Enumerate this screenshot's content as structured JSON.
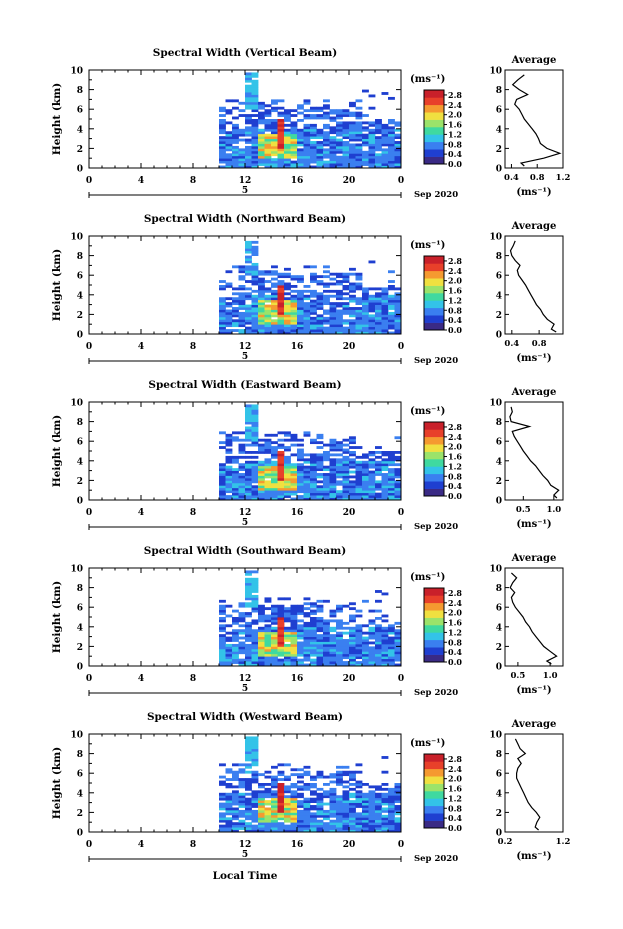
{
  "figure": {
    "x_axis_label": "Local Time",
    "date_label": "Sep 2020",
    "day_label": "5",
    "units_label": "(ms⁻¹)",
    "colorbar_ticks": [
      "2.8",
      "2.4",
      "2.0",
      "1.6",
      "1.2",
      "0.8",
      "0.4",
      "0.0"
    ],
    "colors": [
      "#3a2a85",
      "#1f3fd0",
      "#3a7ff0",
      "#33c3e8",
      "#3fd9a0",
      "#9be36a",
      "#f0e040",
      "#f59a30",
      "#e8402a",
      "#c9202a"
    ]
  },
  "chart_data": [
    {
      "type": "heatmap",
      "title": "Spectral Width (Vertical Beam)",
      "xlabel": "",
      "ylabel": "Height (km)",
      "xlim": [
        0,
        24
      ],
      "ylim": [
        0,
        10
      ],
      "xticks": [
        "0",
        "4",
        "8",
        "12",
        "16",
        "20",
        "0"
      ],
      "yticks": [
        "0",
        "2",
        "4",
        "6",
        "8",
        "10"
      ],
      "zlabel": "(ms⁻¹)",
      "zlim": [
        0,
        3.0
      ],
      "profile": {
        "title": "Average",
        "xlabel": "(ms⁻¹)",
        "xlim": [
          0.3,
          1.2
        ],
        "xticks": [
          "0.4",
          "0.8",
          "1.2"
        ],
        "height": [
          0.2,
          0.5,
          1.0,
          1.5,
          2.0,
          2.5,
          3.0,
          3.5,
          4.0,
          4.5,
          5.0,
          5.5,
          6.0,
          6.5,
          7.0,
          7.5,
          8.0,
          8.5,
          9.0,
          9.5
        ],
        "width": [
          0.6,
          0.55,
          0.9,
          1.15,
          0.95,
          0.85,
          0.82,
          0.78,
          0.72,
          0.66,
          0.6,
          0.56,
          0.52,
          0.45,
          0.48,
          0.65,
          0.52,
          0.42,
          0.5,
          0.6
        ]
      }
    },
    {
      "type": "heatmap",
      "title": "Spectral Width (Northward Beam)",
      "xlabel": "",
      "ylabel": "Height (km)",
      "xlim": [
        0,
        24
      ],
      "ylim": [
        0,
        10
      ],
      "xticks": [
        "0",
        "4",
        "8",
        "12",
        "16",
        "20",
        "0"
      ],
      "yticks": [
        "0",
        "2",
        "4",
        "6",
        "8",
        "10"
      ],
      "zlabel": "(ms⁻¹)",
      "zlim": [
        0,
        3.0
      ],
      "profile": {
        "title": "Average",
        "xlabel": "(ms⁻¹)",
        "xlim": [
          0.3,
          1.15
        ],
        "xticks": [
          "0.4",
          "0.8"
        ],
        "height": [
          0.2,
          0.5,
          1.0,
          1.5,
          2.0,
          2.5,
          3.0,
          3.5,
          4.0,
          4.5,
          5.0,
          5.5,
          6.0,
          6.5,
          7.0,
          7.5,
          8.0,
          8.5,
          9.0,
          9.5
        ],
        "width": [
          1.05,
          0.98,
          1.02,
          0.92,
          0.86,
          0.82,
          0.76,
          0.72,
          0.68,
          0.64,
          0.6,
          0.55,
          0.5,
          0.48,
          0.52,
          0.45,
          0.4,
          0.38,
          0.42,
          0.45
        ]
      }
    },
    {
      "type": "heatmap",
      "title": "Spectral Width (Eastward Beam)",
      "xlabel": "",
      "ylabel": "Height (km)",
      "xlim": [
        0,
        24
      ],
      "ylim": [
        0,
        10
      ],
      "xticks": [
        "0",
        "4",
        "8",
        "12",
        "16",
        "20",
        "0"
      ],
      "yticks": [
        "0",
        "2",
        "4",
        "6",
        "8",
        "10"
      ],
      "zlabel": "(ms⁻¹)",
      "zlim": [
        0,
        3.0
      ],
      "profile": {
        "title": "Average",
        "xlabel": "(ms⁻¹)",
        "xlim": [
          0.2,
          1.15
        ],
        "xticks": [
          "0.5",
          "1.0"
        ],
        "height": [
          0.2,
          0.5,
          1.0,
          1.5,
          2.0,
          2.5,
          3.0,
          3.5,
          4.0,
          4.5,
          5.0,
          5.5,
          6.0,
          6.5,
          7.0,
          7.5,
          8.0,
          8.5,
          9.0,
          9.5
        ],
        "width": [
          1.05,
          1.0,
          1.08,
          0.95,
          0.9,
          0.82,
          0.76,
          0.7,
          0.62,
          0.56,
          0.5,
          0.45,
          0.4,
          0.35,
          0.32,
          0.6,
          0.3,
          0.28,
          0.32,
          0.3
        ]
      }
    },
    {
      "type": "heatmap",
      "title": "Spectral Width (Southward Beam)",
      "xlabel": "",
      "ylabel": "Height (km)",
      "xlim": [
        0,
        24
      ],
      "ylim": [
        0,
        10
      ],
      "xticks": [
        "0",
        "4",
        "8",
        "12",
        "16",
        "20",
        "0"
      ],
      "yticks": [
        "0",
        "2",
        "4",
        "6",
        "8",
        "10"
      ],
      "zlabel": "(ms⁻¹)",
      "zlim": [
        0,
        3.0
      ],
      "profile": {
        "title": "Average",
        "xlabel": "(ms⁻¹)",
        "xlim": [
          0.3,
          1.2
        ],
        "xticks": [
          "0.5",
          "1.0"
        ],
        "height": [
          0.2,
          0.5,
          1.0,
          1.5,
          2.0,
          2.5,
          3.0,
          3.5,
          4.0,
          4.5,
          5.0,
          5.5,
          6.0,
          6.5,
          7.0,
          7.5,
          8.0,
          8.5,
          9.0,
          9.5
        ],
        "width": [
          1.02,
          0.95,
          1.1,
          1.0,
          0.9,
          0.84,
          0.78,
          0.72,
          0.68,
          0.62,
          0.58,
          0.52,
          0.46,
          0.42,
          0.4,
          0.45,
          0.38,
          0.42,
          0.48,
          0.4
        ]
      }
    },
    {
      "type": "heatmap",
      "title": "Spectral Width (Westward Beam)",
      "xlabel": "",
      "ylabel": "Height (km)",
      "xlim": [
        0,
        24
      ],
      "ylim": [
        0,
        10
      ],
      "xticks": [
        "0",
        "4",
        "8",
        "12",
        "16",
        "20",
        "0"
      ],
      "yticks": [
        "0",
        "2",
        "4",
        "6",
        "8",
        "10"
      ],
      "zlabel": "(ms⁻¹)",
      "zlim": [
        0,
        3.0
      ],
      "profile": {
        "title": "Average",
        "xlabel": "(ms⁻¹)",
        "xlim": [
          0.2,
          1.2
        ],
        "xticks": [
          "0.2",
          "1.2"
        ],
        "height": [
          0.2,
          0.5,
          1.0,
          1.5,
          2.0,
          2.5,
          3.0,
          3.5,
          4.0,
          4.5,
          5.0,
          5.5,
          6.0,
          6.5,
          7.0,
          7.5,
          8.0,
          8.5,
          9.0,
          9.5
        ],
        "width": [
          0.78,
          0.72,
          0.75,
          0.8,
          0.74,
          0.66,
          0.6,
          0.56,
          0.52,
          0.48,
          0.44,
          0.4,
          0.4,
          0.42,
          0.48,
          0.42,
          0.55,
          0.46,
          0.42,
          0.38
        ]
      }
    }
  ]
}
